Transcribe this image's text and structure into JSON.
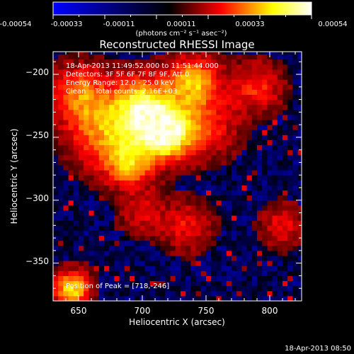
{
  "colorbar": {
    "ticks": [
      "-0.00054",
      "-0.00033",
      "-0.00011",
      "0.00011",
      "0.00033",
      "0.00054"
    ],
    "unit_label": "(photons cm⁻² s⁻¹ asec⁻²)",
    "range": [
      -0.00054,
      0.00054
    ],
    "colors": [
      "#0000ff",
      "#000000",
      "#ff0000",
      "#ffff00",
      "#ffffff"
    ]
  },
  "chart_data": {
    "type": "heatmap",
    "title": "Reconstructed RHESSI Image",
    "xlabel": "Heliocentric X (arcsec)",
    "ylabel": "Heliocentric Y (arcsec)",
    "xlim": [
      630,
      825
    ],
    "ylim": [
      -380,
      -182
    ],
    "x_ticks": [
      650,
      700,
      750,
      800
    ],
    "y_ticks": [
      -200,
      -250,
      -300,
      -350
    ],
    "x_tick_labels": [
      "650",
      "700",
      "750",
      "800"
    ],
    "y_tick_labels": [
      "−200",
      "−250",
      "−300",
      "−350"
    ],
    "peak": [
      718,
      -246
    ],
    "colormap": [
      "#0000ff",
      "#000000",
      "#ff0000",
      "#ffff00",
      "#ffffff"
    ]
  },
  "annotations": {
    "time_range": "18-Apr-2013 11:49:52.000 to 11:51:44.000",
    "detectors": "Detectors: 3F 5F 6F 7F 8F 9F, Att 0",
    "energy": "Energy Range: 12.0 - 25.0 keV",
    "clean": "Clean    Total counts: 2.16E+03",
    "peak_text": "Position of Peak = [718,-246]"
  },
  "footer": {
    "timestamp": "18-Apr-2013 08:50"
  }
}
